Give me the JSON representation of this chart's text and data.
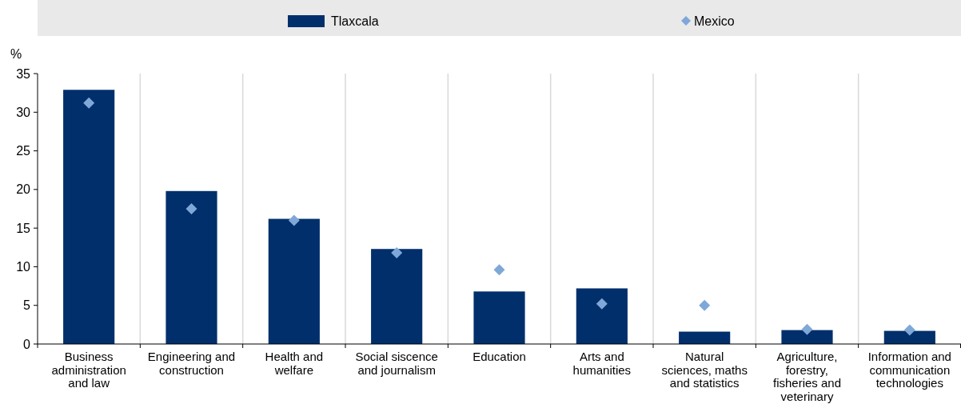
{
  "chart_data": {
    "type": "bar",
    "ylabel": "%",
    "categories": [
      "Business administration and law",
      "Engineering and construction",
      "Health and welfare",
      "Social siscence and journalism",
      "Education",
      "Arts and humanities",
      "Natural sciences, maths and statistics",
      "Agriculture, forestry, fisheries and veterinary",
      "Information and communication technologies"
    ],
    "series": [
      {
        "name": "Tlaxcala",
        "color": "#002f6c",
        "values": [
          32.9,
          19.8,
          16.2,
          12.3,
          6.8,
          7.2,
          1.6,
          1.8,
          1.7
        ]
      },
      {
        "name": "Mexico",
        "type": "scatter",
        "color": "#7fa8d9",
        "marker": "diamond",
        "x": [
          "Business administration and law",
          "Engineering and construction",
          "Health and welfare",
          "Social siscence and journalism",
          "Education",
          "Arts and humanities",
          "Natural sciences, maths and statistics",
          "Agriculture, forestry, fisheries and veterinary",
          "Information and communication technologies"
        ],
        "values": [
          31.2,
          17.5,
          16.0,
          11.8,
          9.6,
          5.2,
          5.0,
          1.9,
          1.8
        ]
      }
    ],
    "ylim": [
      0,
      35
    ],
    "yticks": [
      0,
      5,
      10,
      15,
      20,
      25,
      30,
      35
    ],
    "grid": "x",
    "legend": "top"
  }
}
